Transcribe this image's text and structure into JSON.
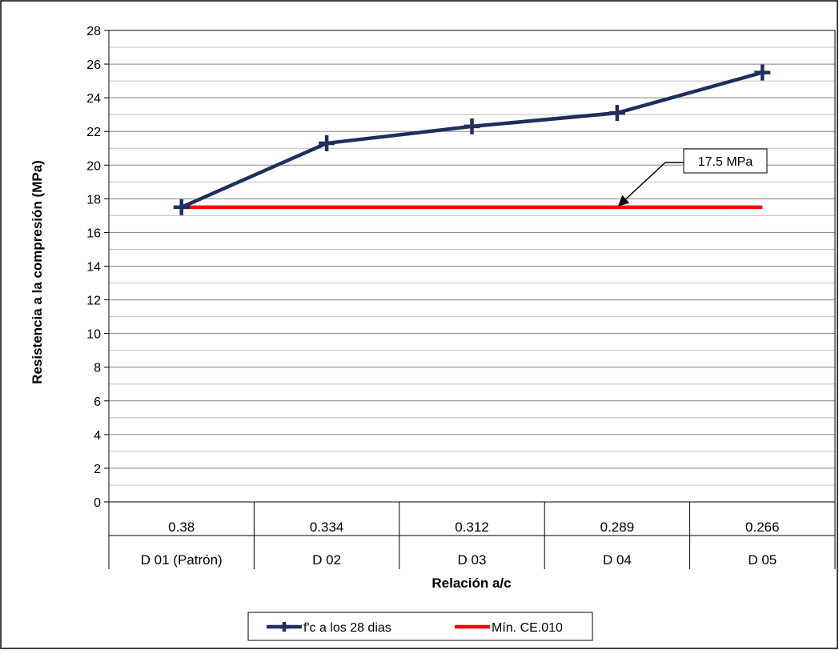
{
  "chart_data": {
    "type": "line",
    "title": "",
    "xlabel": "Relación a/c",
    "ylabel": "Resistencia a la compresión (MPa)",
    "ylim": [
      0,
      28
    ],
    "y_major_step": 2,
    "y_minor_step": 1,
    "grid": true,
    "legend_position": "bottom",
    "categories": [
      {
        "ratio": "0.38",
        "label": "D 01 (Patrón)"
      },
      {
        "ratio": "0.334",
        "label": "D 02"
      },
      {
        "ratio": "0.312",
        "label": "D 03"
      },
      {
        "ratio": "0.289",
        "label": "D 04"
      },
      {
        "ratio": "0.266",
        "label": "D 05"
      }
    ],
    "series": [
      {
        "name": "f'c a los 28 dias",
        "values": [
          17.5,
          21.3,
          22.3,
          23.1,
          25.5
        ],
        "color": "#1F2F5E",
        "marker": "plus"
      },
      {
        "name": "Mín. CE.010",
        "values": [
          17.5,
          17.5,
          17.5,
          17.5,
          17.5
        ],
        "color": "#FF0000",
        "marker": "none"
      }
    ],
    "annotation": {
      "text": "17.5 MPa",
      "category_index": 3,
      "value": 17.5
    }
  }
}
